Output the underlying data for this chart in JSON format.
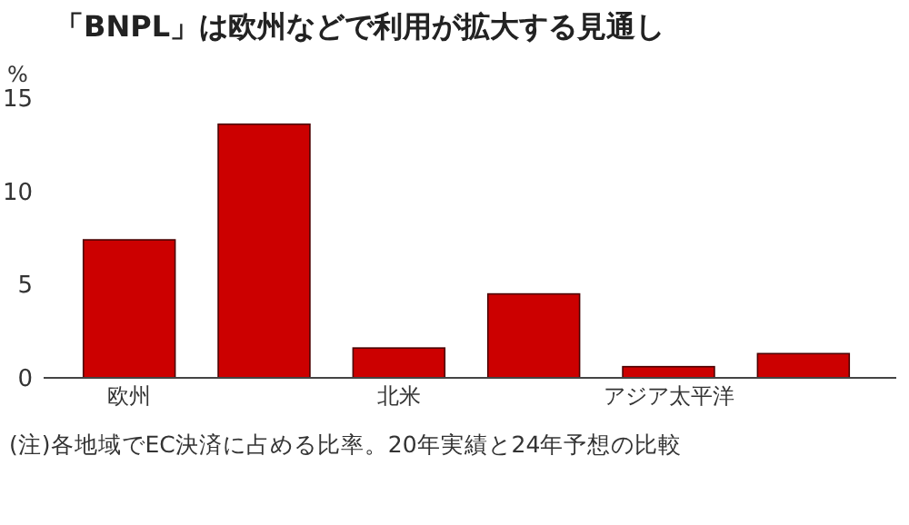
{
  "chart_data": {
    "type": "bar",
    "title": "「BNPL」は欧州などで利用が拡大する見通し",
    "ylabel": "%",
    "categories": [
      "欧州",
      null,
      "北米",
      null,
      "アジア太平洋",
      null
    ],
    "values": [
      7.4,
      13.6,
      1.6,
      4.5,
      0.6,
      1.3
    ],
    "color": "#cc0000",
    "ylim": [
      0,
      15
    ],
    "yticks": [
      0,
      5,
      10,
      15
    ],
    "grid": false,
    "annotations": [
      "(注)各地域でEC決済に占める比率。20年実績と24年予想の比較"
    ]
  }
}
